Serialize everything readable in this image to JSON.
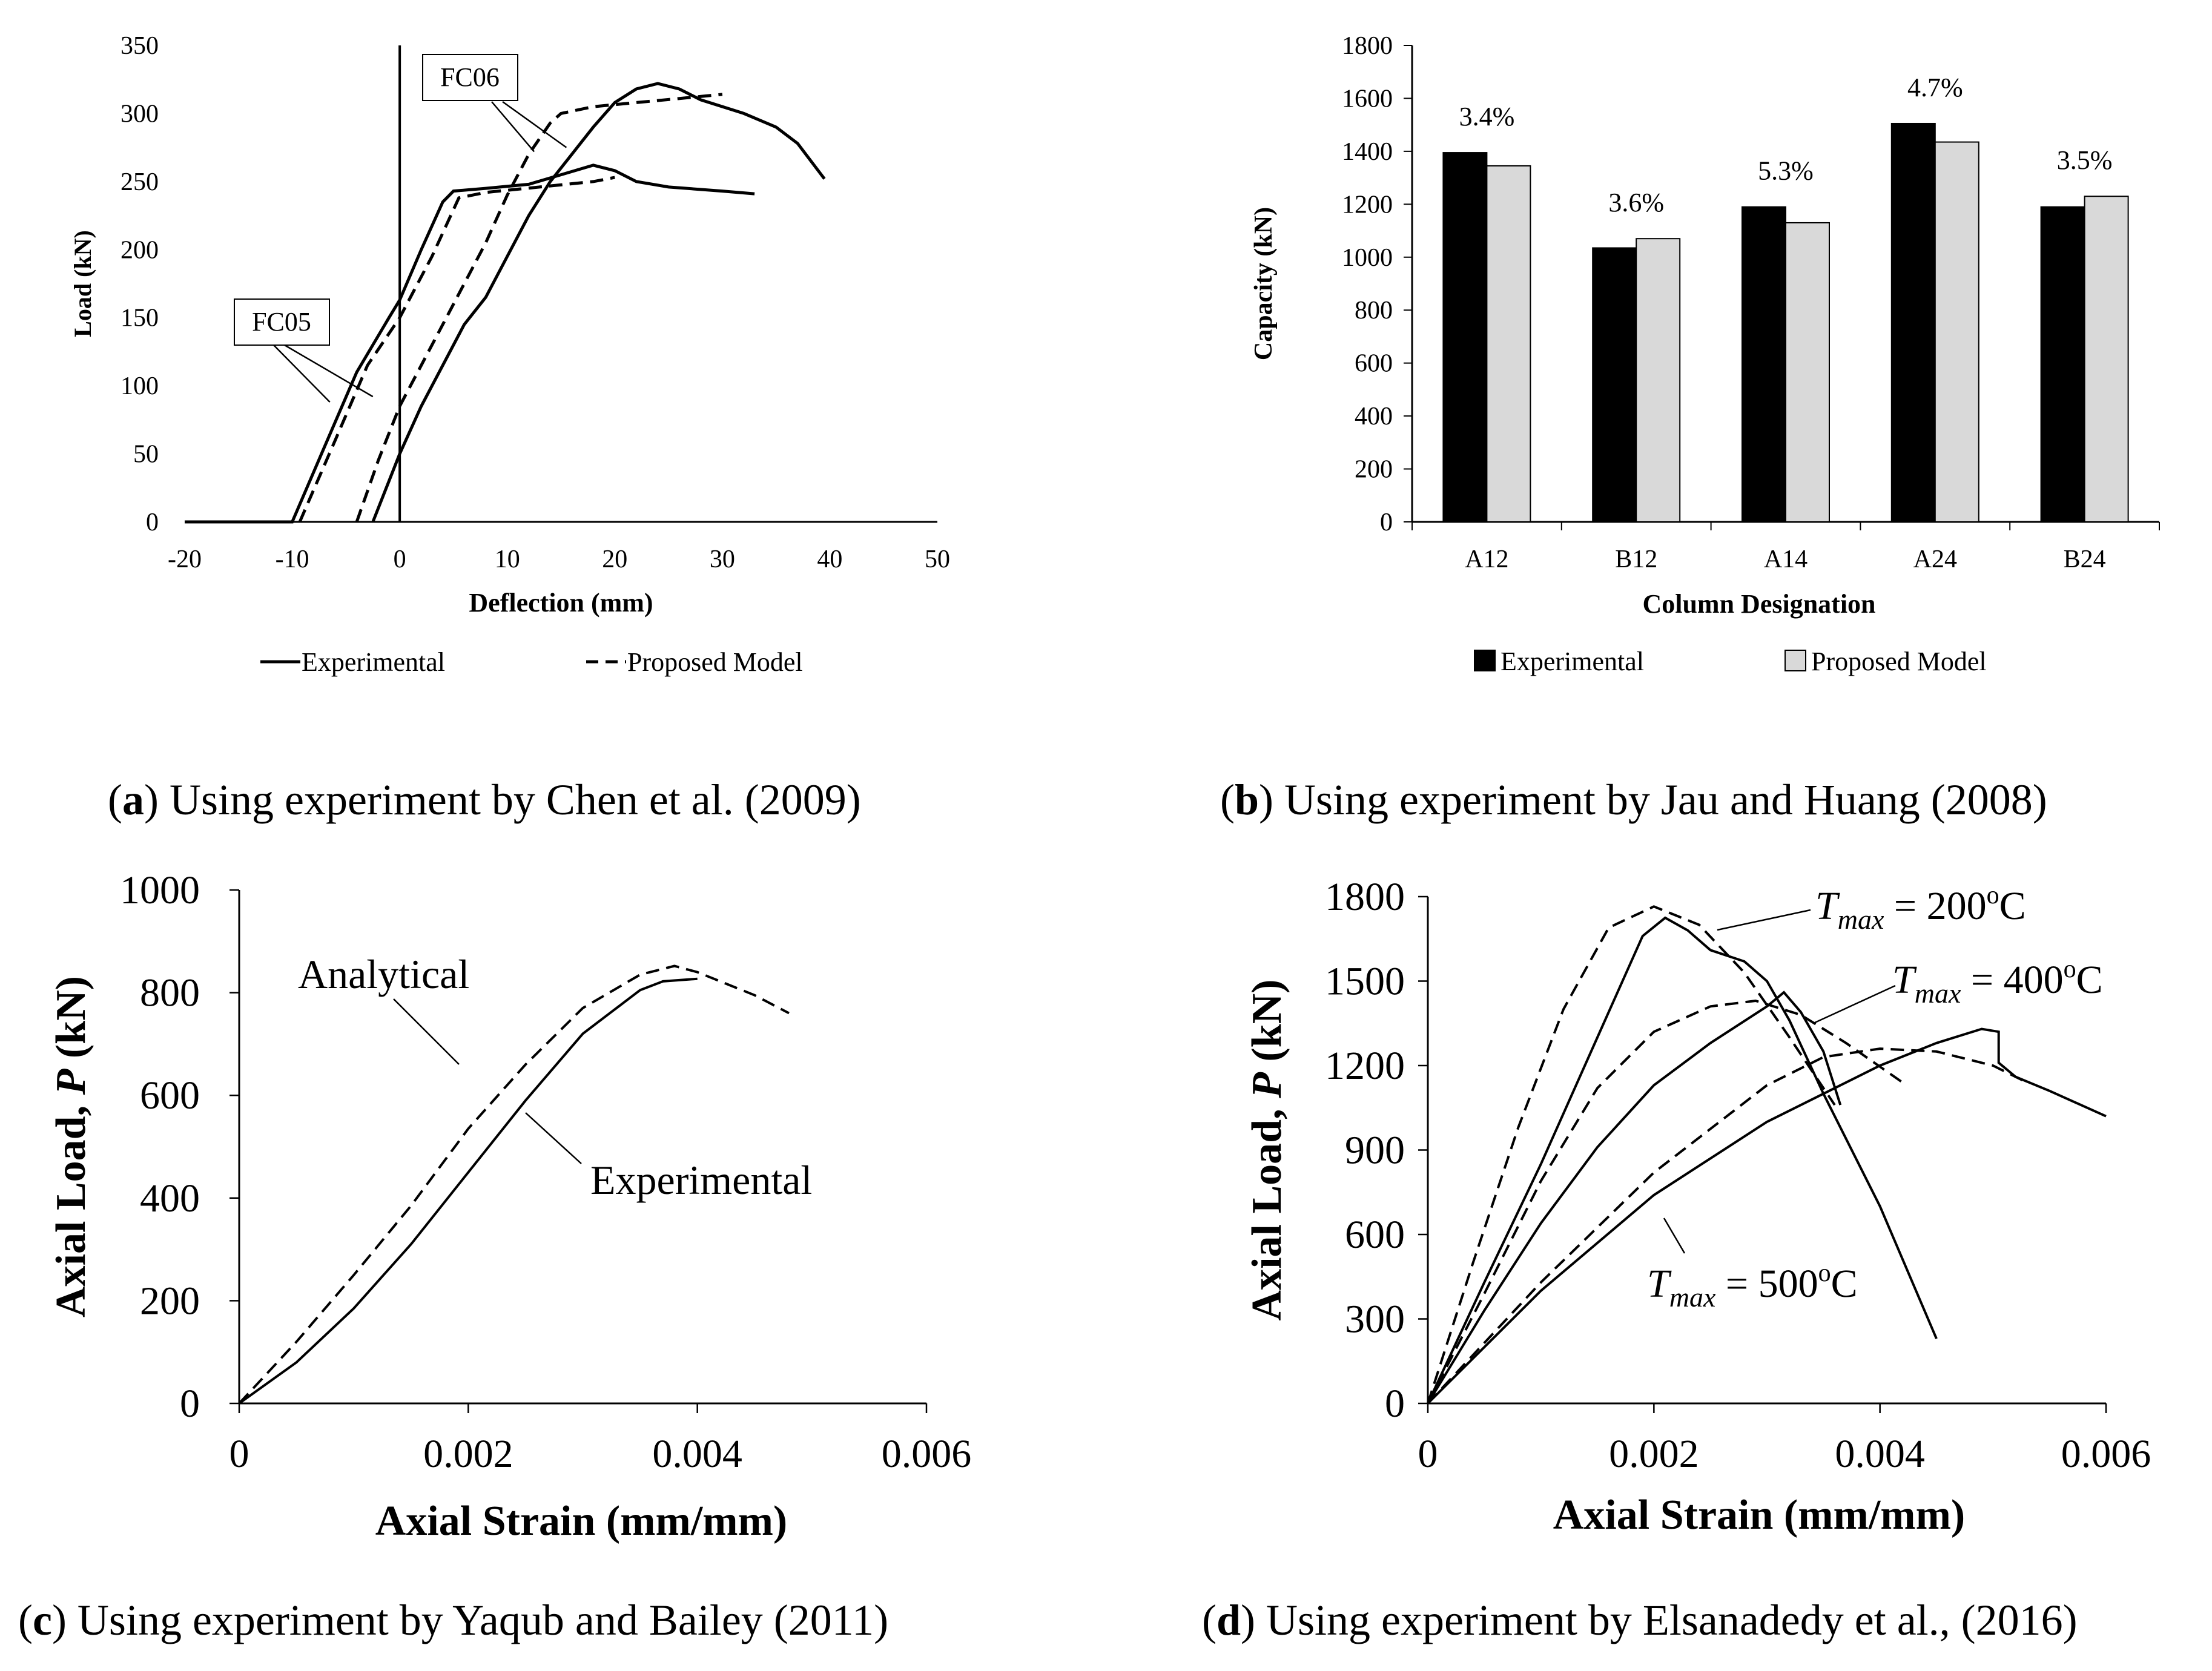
{
  "chart_data": [
    {
      "id": "a",
      "type": "line",
      "xlabel": "Deflection (mm)",
      "ylabel": "Load (kN)",
      "xlim": [
        -20,
        50
      ],
      "ylim": [
        0,
        350
      ],
      "xticks": [
        "-20",
        "-10",
        "0",
        "10",
        "20",
        "30",
        "40",
        "50"
      ],
      "yticks": [
        "0",
        "50",
        "100",
        "150",
        "200",
        "250",
        "300",
        "350"
      ],
      "legend": [
        "Experimental",
        "Proposed Model"
      ],
      "labels": [
        "FC05",
        "FC06"
      ],
      "series": [
        {
          "name": "FC05 Experimental",
          "style": "solid",
          "points": [
            [
              -20,
              0
            ],
            [
              -10,
              0
            ],
            [
              -7,
              55
            ],
            [
              -4,
              110
            ],
            [
              -1,
              150
            ],
            [
              0,
              163
            ],
            [
              2,
              200
            ],
            [
              4,
              235
            ],
            [
              5,
              243
            ],
            [
              8,
              245
            ],
            [
              12,
              248
            ],
            [
              15,
              255
            ],
            [
              18,
              262
            ],
            [
              20,
              258
            ],
            [
              22,
              250
            ],
            [
              25,
              246
            ],
            [
              30,
              243
            ],
            [
              33,
              241
            ]
          ]
        },
        {
          "name": "FC05 Proposed Model",
          "style": "dashed",
          "points": [
            [
              -9.3,
              0
            ],
            [
              -6,
              60
            ],
            [
              -3,
              115
            ],
            [
              0,
              150
            ],
            [
              3,
              195
            ],
            [
              5.5,
              238
            ],
            [
              8,
              242
            ],
            [
              13,
              246
            ],
            [
              18,
              250
            ],
            [
              20,
              253
            ]
          ]
        },
        {
          "name": "FC06 Experimental",
          "style": "solid",
          "points": [
            [
              -2.5,
              0
            ],
            [
              0,
              50
            ],
            [
              2,
              85
            ],
            [
              4,
              115
            ],
            [
              6,
              145
            ],
            [
              8,
              165
            ],
            [
              10,
              195
            ],
            [
              12,
              225
            ],
            [
              14,
              250
            ],
            [
              16,
              270
            ],
            [
              18,
              290
            ],
            [
              20,
              308
            ],
            [
              22,
              318
            ],
            [
              24,
              322
            ],
            [
              26,
              318
            ],
            [
              28,
              310
            ],
            [
              32,
              300
            ],
            [
              35,
              290
            ],
            [
              37,
              278
            ],
            [
              39.5,
              252
            ]
          ]
        },
        {
          "name": "FC06 Proposed Model",
          "style": "dashed",
          "points": [
            [
              -4,
              0
            ],
            [
              -2,
              45
            ],
            [
              0,
              85
            ],
            [
              2,
              115
            ],
            [
              4,
              145
            ],
            [
              6,
              175
            ],
            [
              8,
              205
            ],
            [
              10,
              240
            ],
            [
              12,
              270
            ],
            [
              14,
              293
            ],
            [
              15,
              300
            ],
            [
              18,
              305
            ],
            [
              22,
              308
            ],
            [
              26,
              311
            ],
            [
              30,
              314
            ]
          ]
        }
      ]
    },
    {
      "id": "b",
      "type": "bar",
      "xlabel": "Column Designation",
      "ylabel": "Capacity (kN)",
      "ylim": [
        0,
        1800
      ],
      "yticks": [
        "0",
        "200",
        "400",
        "600",
        "800",
        "1000",
        "1200",
        "1400",
        "1600",
        "1800"
      ],
      "categories": [
        "A12",
        "B12",
        "A14",
        "A24",
        "B24"
      ],
      "series": [
        {
          "name": "Experimental",
          "color": "#000000",
          "values": [
            1395,
            1035,
            1190,
            1505,
            1190
          ]
        },
        {
          "name": "Proposed Model",
          "color": "#d9d9d9",
          "values": [
            1345,
            1070,
            1130,
            1435,
            1230
          ]
        }
      ],
      "annotations": [
        "3.4%",
        "3.6%",
        "5.3%",
        "4.7%",
        "3.5%"
      ]
    },
    {
      "id": "c",
      "type": "line",
      "xlabel": "Axial Strain (mm/mm)",
      "ylabel": "Axial Load, P (kN)",
      "xlim": [
        0,
        0.006
      ],
      "ylim": [
        0,
        1000
      ],
      "xticks": [
        "0",
        "0.002",
        "0.004",
        "0.006"
      ],
      "yticks": [
        "0",
        "200",
        "400",
        "600",
        "800",
        "1000"
      ],
      "labels": [
        "Analytical",
        "Experimental"
      ],
      "series": [
        {
          "name": "Analytical",
          "style": "dashed",
          "points": [
            [
              0,
              0
            ],
            [
              0.0005,
              120
            ],
            [
              0.001,
              250
            ],
            [
              0.0015,
              385
            ],
            [
              0.002,
              535
            ],
            [
              0.0025,
              660
            ],
            [
              0.003,
              770
            ],
            [
              0.0035,
              835
            ],
            [
              0.0038,
              852
            ],
            [
              0.004,
              840
            ],
            [
              0.0045,
              795
            ],
            [
              0.0048,
              760
            ]
          ]
        },
        {
          "name": "Experimental",
          "style": "solid",
          "points": [
            [
              0,
              0
            ],
            [
              0.0005,
              80
            ],
            [
              0.001,
              185
            ],
            [
              0.0015,
              310
            ],
            [
              0.002,
              450
            ],
            [
              0.0025,
              590
            ],
            [
              0.003,
              720
            ],
            [
              0.0035,
              805
            ],
            [
              0.0037,
              822
            ],
            [
              0.004,
              827
            ]
          ]
        }
      ]
    },
    {
      "id": "d",
      "type": "line",
      "xlabel": "Axial Strain (mm/mm)",
      "ylabel": "Axial Load, P (kN)",
      "xlim": [
        0,
        0.006
      ],
      "ylim": [
        0,
        1800
      ],
      "xticks": [
        "0",
        "0.002",
        "0.004",
        "0.006"
      ],
      "yticks": [
        "0",
        "300",
        "600",
        "900",
        "1200",
        "1500",
        "1800"
      ],
      "labels": {
        "l200": {
          "t": "T",
          "sub": "max",
          "rest": " = 200",
          "sup": "o",
          "unit": "C"
        },
        "l400": {
          "t": "T",
          "sub": "max",
          "rest": " = 400",
          "sup": "o",
          "unit": "C"
        },
        "l500": {
          "t": "T",
          "sub": "max",
          "rest": " = 500",
          "sup": "o",
          "unit": "C"
        }
      },
      "series": [
        {
          "name": "200 Experimental",
          "style": "solid",
          "points": [
            [
              0,
              0
            ],
            [
              0.0005,
              430
            ],
            [
              0.001,
              850
            ],
            [
              0.0015,
              1300
            ],
            [
              0.0019,
              1660
            ],
            [
              0.0021,
              1725
            ],
            [
              0.0023,
              1680
            ],
            [
              0.0025,
              1610
            ],
            [
              0.0028,
              1570
            ],
            [
              0.003,
              1500
            ],
            [
              0.0032,
              1360
            ],
            [
              0.0035,
              1100
            ],
            [
              0.004,
              700
            ],
            [
              0.0045,
              230
            ]
          ]
        },
        {
          "name": "200 Analytical",
          "style": "dashed",
          "points": [
            [
              0,
              0
            ],
            [
              0.0004,
              500
            ],
            [
              0.0008,
              980
            ],
            [
              0.0012,
              1400
            ],
            [
              0.0016,
              1690
            ],
            [
              0.002,
              1765
            ],
            [
              0.0024,
              1700
            ],
            [
              0.0028,
              1530
            ],
            [
              0.0032,
              1300
            ],
            [
              0.0036,
              1060
            ]
          ]
        },
        {
          "name": "400 Experimental",
          "style": "solid",
          "points": [
            [
              0,
              0
            ],
            [
              0.0005,
              330
            ],
            [
              0.001,
              640
            ],
            [
              0.0015,
              910
            ],
            [
              0.002,
              1130
            ],
            [
              0.0025,
              1280
            ],
            [
              0.003,
              1410
            ],
            [
              0.00315,
              1460
            ],
            [
              0.0033,
              1390
            ],
            [
              0.0035,
              1250
            ],
            [
              0.00365,
              1060
            ]
          ]
        },
        {
          "name": "400 Analytical",
          "style": "dashed",
          "points": [
            [
              0,
              0
            ],
            [
              0.0005,
              390
            ],
            [
              0.001,
              790
            ],
            [
              0.0015,
              1120
            ],
            [
              0.002,
              1320
            ],
            [
              0.0025,
              1410
            ],
            [
              0.0029,
              1430
            ],
            [
              0.0033,
              1380
            ],
            [
              0.0037,
              1280
            ],
            [
              0.0042,
              1140
            ]
          ]
        },
        {
          "name": "500 Experimental",
          "style": "solid",
          "points": [
            [
              0,
              0
            ],
            [
              0.001,
              400
            ],
            [
              0.002,
              740
            ],
            [
              0.003,
              1000
            ],
            [
              0.004,
              1200
            ],
            [
              0.0045,
              1280
            ],
            [
              0.0049,
              1330
            ],
            [
              0.00505,
              1320
            ],
            [
              0.00505,
              1210
            ],
            [
              0.0052,
              1160
            ],
            [
              0.0055,
              1110
            ],
            [
              0.006,
              1020
            ]
          ]
        },
        {
          "name": "500 Analytical",
          "style": "dashed",
          "points": [
            [
              0,
              0
            ],
            [
              0.001,
              430
            ],
            [
              0.002,
              820
            ],
            [
              0.003,
              1130
            ],
            [
              0.0035,
              1230
            ],
            [
              0.004,
              1260
            ],
            [
              0.0045,
              1250
            ],
            [
              0.005,
              1200
            ],
            [
              0.0053,
              1140
            ]
          ]
        }
      ]
    }
  ],
  "captions": {
    "a": {
      "letter": "a",
      "text": ") Using experiment by Chen et al. (2009)"
    },
    "b": {
      "letter": "b",
      "text": ") Using experiment by Jau and Huang (2008)"
    },
    "c": {
      "letter": "c",
      "text": ") Using experiment by Yaqub and Bailey (2011)"
    },
    "d": {
      "letter": "d",
      "text": ") Using experiment by Elsanadedy et al., (2016)"
    }
  }
}
